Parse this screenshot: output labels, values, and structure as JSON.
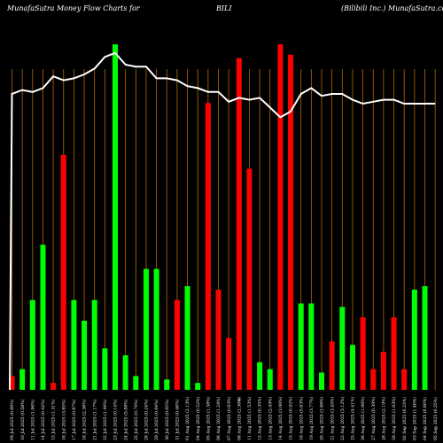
{
  "header": {
    "left": "MunafaSutra  Money Flow  Charts for",
    "symbol": "BILI",
    "right": "(Bilibili   Inc.) MunafaSutra.com"
  },
  "chart_data": {
    "type": "bar",
    "x_axis_label": "0",
    "colors": {
      "up": "#00ff00",
      "down": "#ff0000",
      "line": "#ffffff",
      "grid": "#b36b00",
      "background": "#000000"
    },
    "categories": [
      "09 Jul 2025",
      "10 Jul 2025",
      "11 Jul 2025",
      "14 Jul 2025",
      "15 Jul 2025",
      "16 Jul 2025",
      "17 Jul 2025",
      "18 Jul 2025",
      "21 Jul 2025",
      "22 Jul 2025",
      "23 Jul 2025",
      "24 Jul 2025",
      "25 Jul 2025",
      "28 Jul 2025",
      "29 Jul 2025",
      "30 Jul 2025",
      "31 Jul 2025",
      "01 Aug 2025",
      "04 Aug 2025",
      "05 Aug 2025",
      "06 Aug 2025",
      "07 Aug 2025",
      "08 Aug 2025",
      "11 Aug 2025",
      "12 Aug 2025",
      "13 Aug 2025",
      "14 Aug 2025",
      "15 Aug 2025",
      "18 Aug 2025",
      "19 Aug 2025",
      "20 Aug 2025",
      "21 Aug 2025",
      "22 Aug 2025",
      "25 Aug 2025",
      "26 Aug 2025",
      "27 Aug 2025",
      "28 Aug 2025",
      "29 Aug 2025",
      "02 Sep 2025",
      "03 Sep 2025",
      "04 Sep 2025",
      "05 Sep 2025"
    ],
    "tick_labels": [
      "09 Jul 2025 (0.00%)",
      "10 Jul 2025 (0.58%)",
      "11 Jul 2025 (1.06%)",
      "14 Jul 2025 (0.42%)",
      "15 Jul 2025 (1.31%)",
      "16 Jul 2025 (3.65%)",
      "17 Jul 2025 (0.67%)",
      "18 Jul 2025 (2.36%)",
      "21 Jul 2025 (1.17%)",
      "22 Jul 2025 (1.44%)",
      "23 Jul 2025 (0.14%)",
      "24 Jul 2025 (5.08%)",
      "25 Jul 2025 (0.74%)",
      "28 Jul 2025 (0.24%)",
      "29 Jul 2025 (0.04%)",
      "30 Jul 2025 (0.05%)",
      "31 Jul 2025 (0.46%)",
      "01 Aug 2025 (2.13%)",
      "04 Aug 2025 (0.52%)",
      "05 Aug 2025 (1.38%)",
      "06 Aug 2025 (1.24%)",
      "07 Aug 2025 (0.63%)",
      "08 Aug 2025 (2.36%)",
      "11 Aug 2025 (1.53%)",
      "12 Aug 2025 (0.35%)",
      "13 Aug 2025 (2.49%)",
      "14 Aug 2025 (3.06%)",
      "15 Aug 2025 (0.92%)",
      "18 Aug 2025 (5.63%)",
      "19 Aug 2025 (3.77%)",
      "20 Aug 2025 (2.66%)",
      "21 Aug 2025 (3.45%)",
      "22 Aug 2025 (3.12%)",
      "25 Aug 2025 (4.41%)",
      "26 Aug 2025 (1.06%)",
      "27 Aug 2025 (0.39%)",
      "28 Aug 2025 (2.19%)",
      "29 Aug 2025 (1.03%)",
      "02 Sep 2025 (0.33%)",
      "03 Sep 2025 (1.46%)",
      "04 Sep 2025 (0.80%)",
      "05 Sep 2025 (0.35%)"
    ],
    "series": [
      {
        "kind": "money_flow_bars",
        "values": [
          4,
          6,
          26,
          42,
          2,
          68,
          26,
          20,
          26,
          12,
          100,
          10,
          4,
          35,
          35,
          3,
          26,
          30,
          2,
          83,
          29,
          15,
          96,
          64,
          8,
          6,
          100,
          97,
          25,
          25,
          5,
          14,
          24,
          13,
          21,
          6,
          11,
          21,
          6,
          29,
          30,
          0
        ],
        "direction": [
          "down",
          "up",
          "up",
          "up",
          "down",
          "down",
          "up",
          "up",
          "up",
          "up",
          "up",
          "up",
          "up",
          "up",
          "up",
          "up",
          "down",
          "up",
          "up",
          "down",
          "down",
          "down",
          "down",
          "down",
          "up",
          "up",
          "down",
          "down",
          "up",
          "up",
          "up",
          "down",
          "up",
          "up",
          "down",
          "down",
          "down",
          "down",
          "down",
          "up",
          "up",
          "up"
        ]
      },
      {
        "kind": "price_line",
        "values": [
          70,
          72,
          71,
          73,
          79,
          77,
          78,
          80,
          83,
          89,
          91,
          85,
          84,
          84,
          78,
          78,
          77,
          74,
          73,
          71,
          71,
          66,
          68,
          67,
          68,
          63,
          58,
          61,
          70,
          73,
          69,
          70,
          70,
          67,
          65,
          66,
          67,
          67,
          65,
          65,
          65,
          65
        ]
      }
    ],
    "ylim": [
      0,
      100
    ],
    "grid": "vertical",
    "legend": "none"
  }
}
